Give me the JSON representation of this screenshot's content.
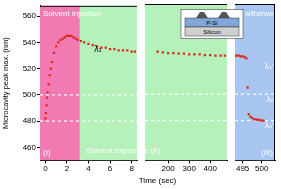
{
  "chart_data": {
    "type": "scatter",
    "x_label": "Time (sec)",
    "y_label": "Microcavity peak max. (nm)",
    "ylim": [
      450,
      568
    ],
    "yticks": [
      460,
      480,
      500,
      520,
      540,
      560
    ],
    "grid": false,
    "color": "#e0281e",
    "marker": "square",
    "panels": [
      {
        "xlim": [
          -0.5,
          8.5
        ],
        "xticks": [
          0,
          2,
          4,
          6,
          8
        ],
        "x": [
          0,
          0.05,
          0.1,
          0.15,
          0.2,
          0.3,
          0.4,
          0.5,
          0.6,
          0.8,
          1.0,
          1.2,
          1.4,
          1.6,
          1.8,
          2.0,
          2.2,
          2.4,
          2.6,
          2.8,
          3.0,
          3.3,
          3.6,
          4.0,
          4.4,
          4.8,
          5.2,
          5.6,
          6.0,
          6.4,
          6.8,
          7.2,
          7.6,
          8.0,
          8.3
        ],
        "values": [
          482,
          486,
          492,
          498,
          502,
          508,
          515,
          520,
          525,
          532,
          537,
          540,
          542,
          543,
          544,
          545,
          545,
          545,
          544,
          543,
          542,
          541,
          540,
          539,
          538,
          537,
          536,
          536,
          535,
          535,
          534,
          534,
          534,
          533,
          533
        ]
      },
      {
        "xlim": [
          90,
          480
        ],
        "xticks": [
          200,
          300,
          400
        ],
        "x": [
          150,
          175,
          200,
          225,
          250,
          275,
          300,
          325,
          350,
          375,
          400,
          425,
          450,
          470
        ],
        "values": [
          532,
          531.5,
          531,
          531,
          530.5,
          530.5,
          530,
          530,
          530,
          529.5,
          529.5,
          529,
          529,
          529
        ]
      },
      {
        "xlim": [
          493,
          503.5
        ],
        "xticks": [
          495,
          500
        ],
        "x": [
          493,
          493.5,
          494,
          494.5,
          495,
          495.5,
          496,
          496.3,
          496.6,
          497,
          497.5,
          498,
          498.5,
          499,
          499.5,
          500,
          500.5
        ],
        "values": [
          529,
          529,
          529,
          528.5,
          528.5,
          528,
          527,
          505,
          485,
          483,
          482,
          481,
          481,
          480.5,
          480.5,
          480,
          480
        ]
      }
    ],
    "regions": [
      {
        "label": "(I)",
        "text": "Solvent injection",
        "xlim": [
          -0.5,
          3.2
        ],
        "color": "#f27ab3"
      },
      {
        "label": "(II)",
        "text": "Solvent exposure",
        "xlim": [
          3.2,
          493
        ],
        "color": "#b6f0bb"
      },
      {
        "label": "(III)",
        "text": "Solvent withdraw",
        "xlim": [
          493,
          503.5
        ],
        "color": "#a9c6f0"
      }
    ],
    "levels": [
      {
        "label": "λ₁",
        "value": 540,
        "x": 4.5,
        "line_style": "none"
      },
      {
        "label": "λ₁'",
        "value": 528,
        "line_style": "none"
      },
      {
        "label": "λ₀",
        "value": 500,
        "line_style": "dashed"
      },
      {
        "label": "λ₀'",
        "value": 480,
        "line_style": "dashed"
      }
    ],
    "inset": {
      "top_layer": "P-Si",
      "bottom_layer": "Silicon"
    }
  }
}
